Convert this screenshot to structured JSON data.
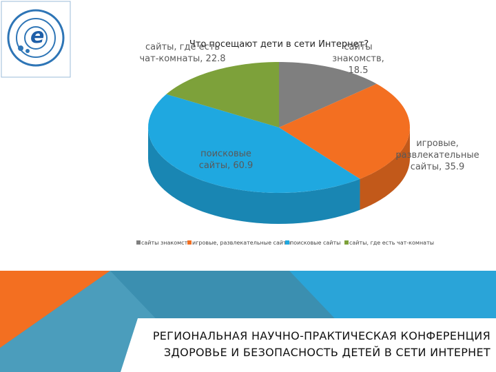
{
  "chart_data": {
    "type": "pie",
    "title": "Что посещают дети в сети Интернет?",
    "categories": [
      "сайты знакомств",
      "игровые, развлекательные сайты",
      "поисковые сайты",
      "сайты, где есть чат-комнаты"
    ],
    "values": [
      18.5,
      35.9,
      60.9,
      22.8
    ],
    "value_labels": [
      "сайты знакомств, 18.5",
      "игровые, развлекательные сайты, 35.9",
      "поисковые сайты, 60.9",
      "сайты, где есть чат-комнаты, 22.8"
    ],
    "colors": [
      "#7f7f7f",
      "#f36f21",
      "#1fa8e0",
      "#7da13a"
    ],
    "legend": "bottom"
  },
  "footer": {
    "line1": "РЕГИОНАЛЬНАЯ НАУЧНО-ПРАКТИЧЕСКАЯ КОНФЕРЕНЦИЯ",
    "line2": "ЗДОРОВЬЕ И БЕЗОПАСНОСТЬ ДЕТЕЙ В СЕТИ ИНТЕРНЕТ"
  }
}
